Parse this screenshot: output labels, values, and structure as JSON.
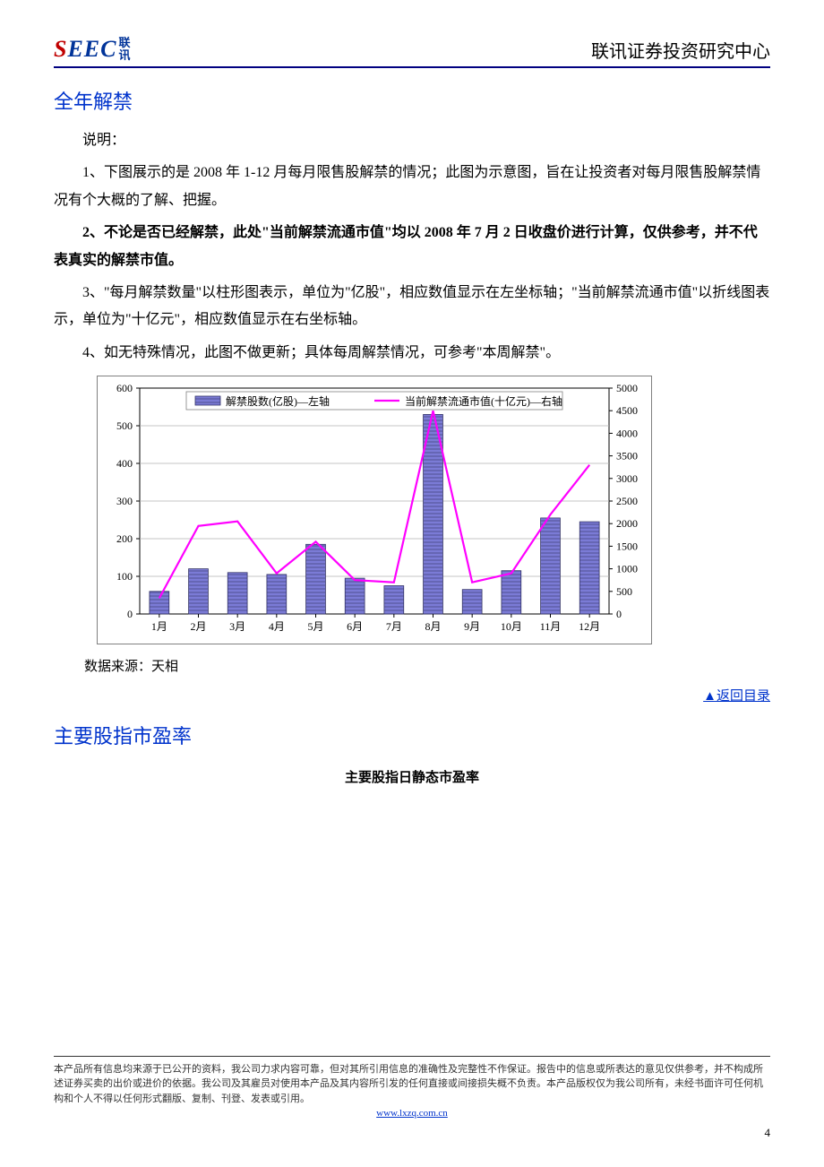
{
  "header": {
    "logo_en": "SEEC",
    "logo_cn_top": "联",
    "logo_cn_bot": "讯",
    "right": "联讯证券投资研究中心"
  },
  "section1": {
    "title": "全年解禁",
    "p0": "说明：",
    "p1": "1、下图展示的是 2008 年 1-12 月每月限售股解禁的情况；此图为示意图，旨在让投资者对每月限售股解禁情况有个大概的了解、把握。",
    "p2": "2、不论是否已经解禁，此处\"当前解禁流通市值\"均以 2008 年 7 月 2 日收盘价进行计算，仅供参考，并不代表真实的解禁市值。",
    "p3": "3、\"每月解禁数量\"以柱形图表示，单位为\"亿股\"，相应数值显示在左坐标轴；\"当前解禁流通市值\"以折线图表示，单位为\"十亿元\"，相应数值显示在右坐标轴。",
    "p4": "4、如无特殊情况，此图不做更新；具体每周解禁情况，可参考\"本周解禁\"。",
    "data_source": "数据来源：天相"
  },
  "chart": {
    "type": "bar+line",
    "legend_bar": "解禁股数(亿股)—左轴",
    "legend_line": "当前解禁流通市值(十亿元)—右轴",
    "categories": [
      "1月",
      "2月",
      "3月",
      "4月",
      "5月",
      "6月",
      "7月",
      "8月",
      "9月",
      "10月",
      "11月",
      "12月"
    ],
    "bar_values": [
      60,
      120,
      110,
      105,
      185,
      95,
      75,
      530,
      65,
      115,
      255,
      245
    ],
    "line_values": [
      350,
      1950,
      2050,
      900,
      1600,
      750,
      700,
      4500,
      700,
      900,
      2200,
      3300
    ],
    "y_left_max": 600,
    "y_left_step": 100,
    "y_right_max": 5000,
    "y_right_step": 500,
    "bar_fill": "#7b7bd6",
    "bar_stroke": "#333366",
    "line_color": "#ff00ff",
    "grid_color": "#b0b0b0",
    "axis_color": "#000000",
    "background": "#ffffff",
    "chart_border": "#808080",
    "tick_fontsize": 12,
    "legend_fontsize": 12,
    "pattern_color": "#333366"
  },
  "back_link": "▲返回目录",
  "section2": {
    "title": "主要股指市盈率",
    "subtitle": "主要股指日静态市盈率"
  },
  "footer": {
    "disclaimer": "本产品所有信息均来源于已公开的资料，我公司力求内容可靠，但对其所引用信息的准确性及完整性不作保证。报告中的信息或所表达的意见仅供参考，并不构成所述证券买卖的出价或进价的依据。我公司及其雇员对使用本产品及其内容所引发的任何直接或间接损失概不负责。本产品版权仅为我公司所有，未经书面许可任何机构和个人不得以任何形式翻版、复制、刊登、发表或引用。",
    "url_text": "www.lxzq.com.cn",
    "page": "4"
  }
}
